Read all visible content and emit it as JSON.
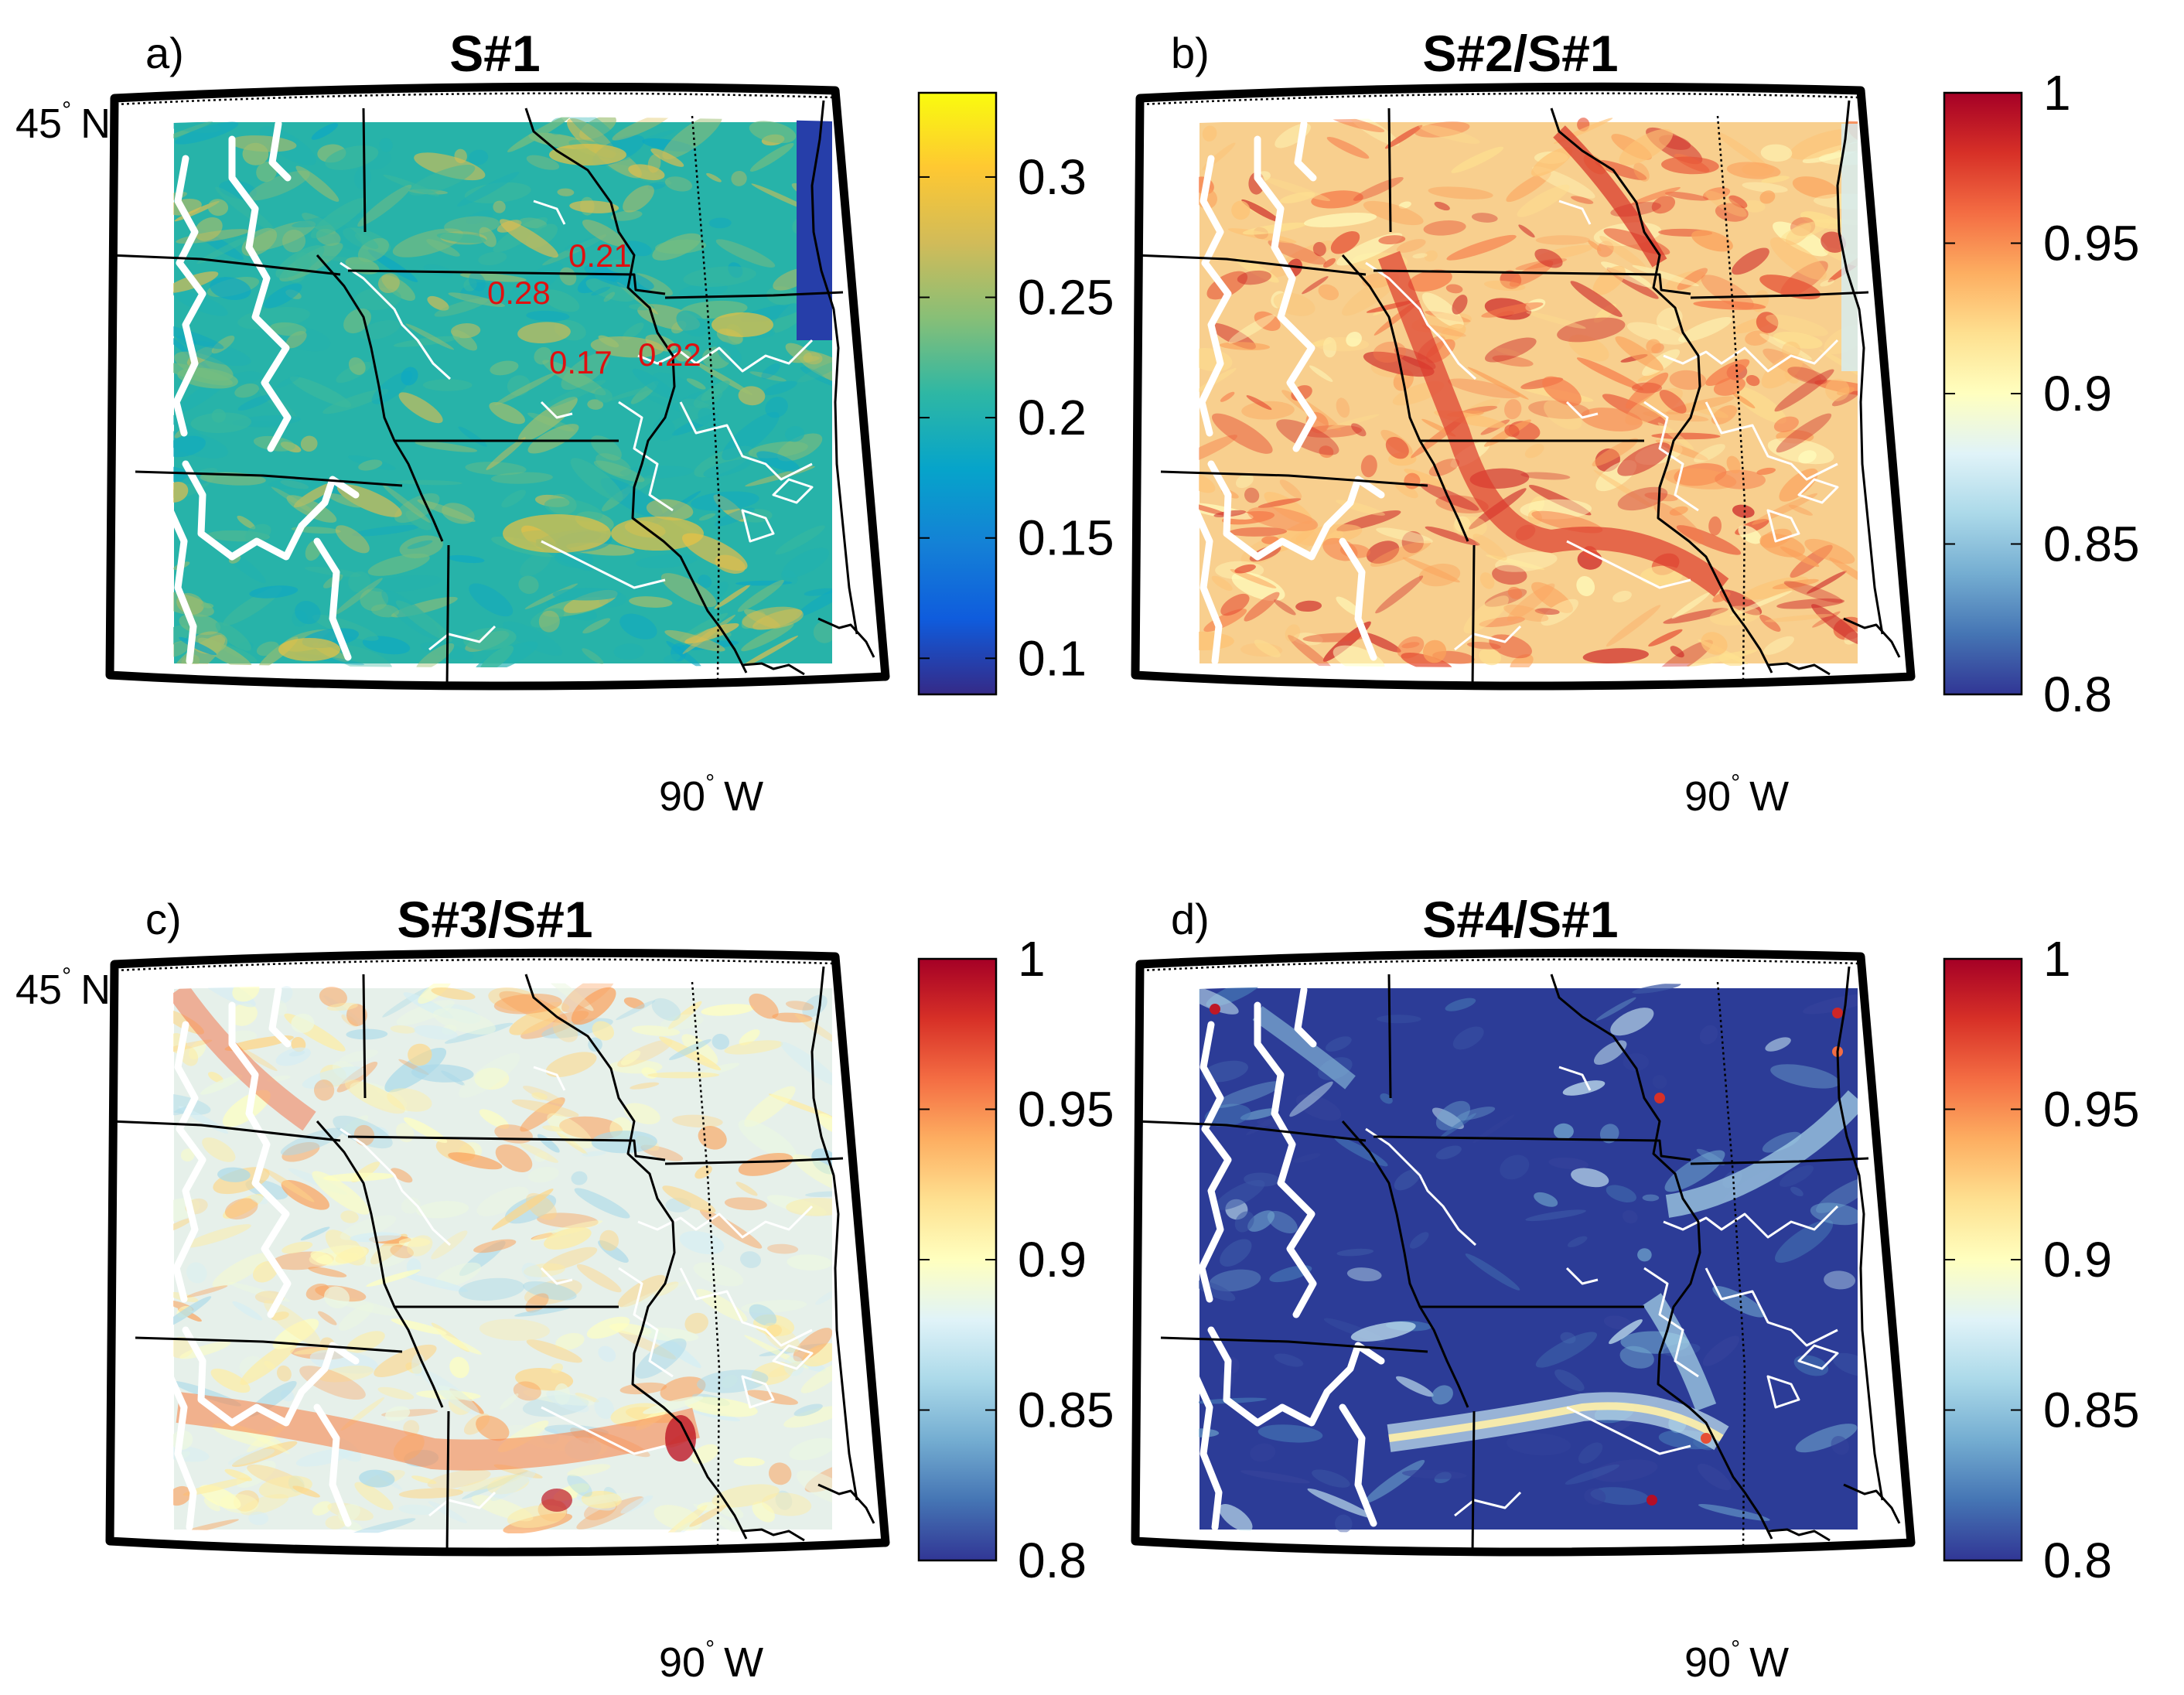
{
  "panels": [
    {
      "id": "a",
      "letter": "a)",
      "title": "S#1",
      "colormap": "parula",
      "colorbar": {
        "min": 0.085,
        "max": 0.335,
        "ticks": [
          "0.1",
          "0.15",
          "0.2",
          "0.25",
          "0.3"
        ],
        "tick_values": [
          0.1,
          0.15,
          0.2,
          0.25,
          0.3
        ]
      },
      "lat_label": "45",
      "lat_suffix": "N",
      "lon_label": "90",
      "lon_suffix": "W",
      "annotations": [
        "0.21",
        "0.28",
        "0.17",
        "0.22"
      ],
      "base_color": "#27b3a9"
    },
    {
      "id": "b",
      "letter": "b)",
      "title": "S#2/S#1",
      "colormap": "RdYlBu_r",
      "colorbar": {
        "min": 0.8,
        "max": 1.0,
        "ticks": [
          "0.8",
          "0.85",
          "0.9",
          "0.95",
          "1"
        ],
        "tick_values": [
          0.8,
          0.85,
          0.9,
          0.95,
          1.0
        ]
      },
      "lat_label": "",
      "lat_suffix": "",
      "lon_label": "90",
      "lon_suffix": "W",
      "annotations": [],
      "base_color": "#f8cf8e"
    },
    {
      "id": "c",
      "letter": "c)",
      "title": "S#3/S#1",
      "colormap": "RdYlBu_r",
      "colorbar": {
        "min": 0.8,
        "max": 1.0,
        "ticks": [
          "0.8",
          "0.85",
          "0.9",
          "0.95",
          "1"
        ],
        "tick_values": [
          0.8,
          0.85,
          0.9,
          0.95,
          1.0
        ]
      },
      "lat_label": "45",
      "lat_suffix": "N",
      "lon_label": "90",
      "lon_suffix": "W",
      "annotations": [],
      "base_color": "#e6f0ea"
    },
    {
      "id": "d",
      "letter": "d)",
      "title": "S#4/S#1",
      "colormap": "RdYlBu_r",
      "colorbar": {
        "min": 0.8,
        "max": 1.0,
        "ticks": [
          "0.8",
          "0.85",
          "0.9",
          "0.95",
          "1"
        ],
        "tick_values": [
          0.8,
          0.85,
          0.9,
          0.95,
          1.0
        ]
      },
      "lat_label": "",
      "lat_suffix": "",
      "lon_label": "90",
      "lon_suffix": "W",
      "annotations": [],
      "base_color": "#2c3c97"
    }
  ],
  "colors": {
    "parula": [
      "#352a87",
      "#0f5cdd",
      "#1481d6",
      "#06a4ca",
      "#2eb7a4",
      "#87bf77",
      "#d1bb59",
      "#fec832",
      "#f9fb0e"
    ],
    "RdYlBu_r": [
      "#313695",
      "#4575b4",
      "#74add1",
      "#abd9e9",
      "#e0f3f8",
      "#ffffbf",
      "#fee090",
      "#fdae61",
      "#f46d43",
      "#d73027",
      "#a50026"
    ]
  }
}
